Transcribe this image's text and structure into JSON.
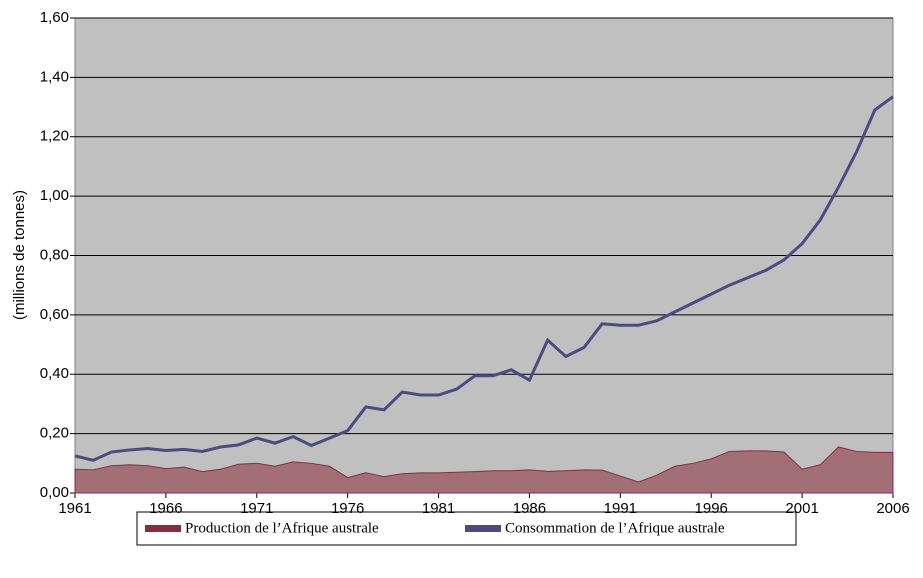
{
  "chart_data": {
    "type": "line",
    "ylabel": "(millions de tonnes)",
    "x": [
      1961,
      1962,
      1963,
      1964,
      1965,
      1966,
      1967,
      1968,
      1969,
      1970,
      1971,
      1972,
      1973,
      1974,
      1975,
      1976,
      1977,
      1978,
      1979,
      1980,
      1981,
      1982,
      1983,
      1984,
      1985,
      1986,
      1987,
      1988,
      1989,
      1990,
      1991,
      1992,
      1993,
      1994,
      1995,
      1996,
      1997,
      1998,
      1999,
      2000,
      2001,
      2002,
      2003,
      2004,
      2005,
      2006
    ],
    "series": [
      {
        "name": "Production de l’Afrique australe",
        "type": "area",
        "color": "#8b2b3b",
        "values": [
          0.08,
          0.078,
          0.092,
          0.095,
          0.092,
          0.082,
          0.087,
          0.072,
          0.08,
          0.097,
          0.1,
          0.09,
          0.105,
          0.1,
          0.09,
          0.052,
          0.068,
          0.055,
          0.065,
          0.068,
          0.068,
          0.07,
          0.072,
          0.075,
          0.075,
          0.078,
          0.073,
          0.075,
          0.078,
          0.077,
          0.057,
          0.037,
          0.06,
          0.09,
          0.1,
          0.115,
          0.14,
          0.142,
          0.142,
          0.138,
          0.08,
          0.095,
          0.155,
          0.14,
          0.137,
          0.137
        ]
      },
      {
        "name": "Consommation de l’Afrique australe",
        "type": "line",
        "color": "#4c4a80",
        "values": [
          0.125,
          0.11,
          0.138,
          0.145,
          0.15,
          0.143,
          0.147,
          0.14,
          0.155,
          0.162,
          0.185,
          0.168,
          0.19,
          0.16,
          0.185,
          0.21,
          0.29,
          0.28,
          0.34,
          0.33,
          0.33,
          0.35,
          0.395,
          0.395,
          0.415,
          0.38,
          0.515,
          0.46,
          0.49,
          0.57,
          0.565,
          0.565,
          0.58,
          0.61,
          0.64,
          0.67,
          0.7,
          0.725,
          0.75,
          0.785,
          0.84,
          0.92,
          1.03,
          1.15,
          1.29,
          1.335
        ]
      }
    ],
    "xlim": [
      1961,
      2006
    ],
    "xticks": [
      1961,
      1966,
      1971,
      1976,
      1981,
      1986,
      1991,
      1996,
      2001,
      2006
    ],
    "ylim": [
      0,
      1.6
    ],
    "yticks": [
      {
        "value": 0,
        "label": "0,00"
      },
      {
        "value": 0.2,
        "label": "0,20"
      },
      {
        "value": 0.4,
        "label": "0,40"
      },
      {
        "value": 0.6,
        "label": "0,60"
      },
      {
        "value": 0.8,
        "label": "0,80"
      },
      {
        "value": 1.0,
        "label": "1,00"
      },
      {
        "value": 1.2,
        "label": "1,20"
      },
      {
        "value": 1.4,
        "label": "1,40"
      },
      {
        "value": 1.6,
        "label": "1,60"
      }
    ],
    "grid": true,
    "legend": "bottom"
  }
}
